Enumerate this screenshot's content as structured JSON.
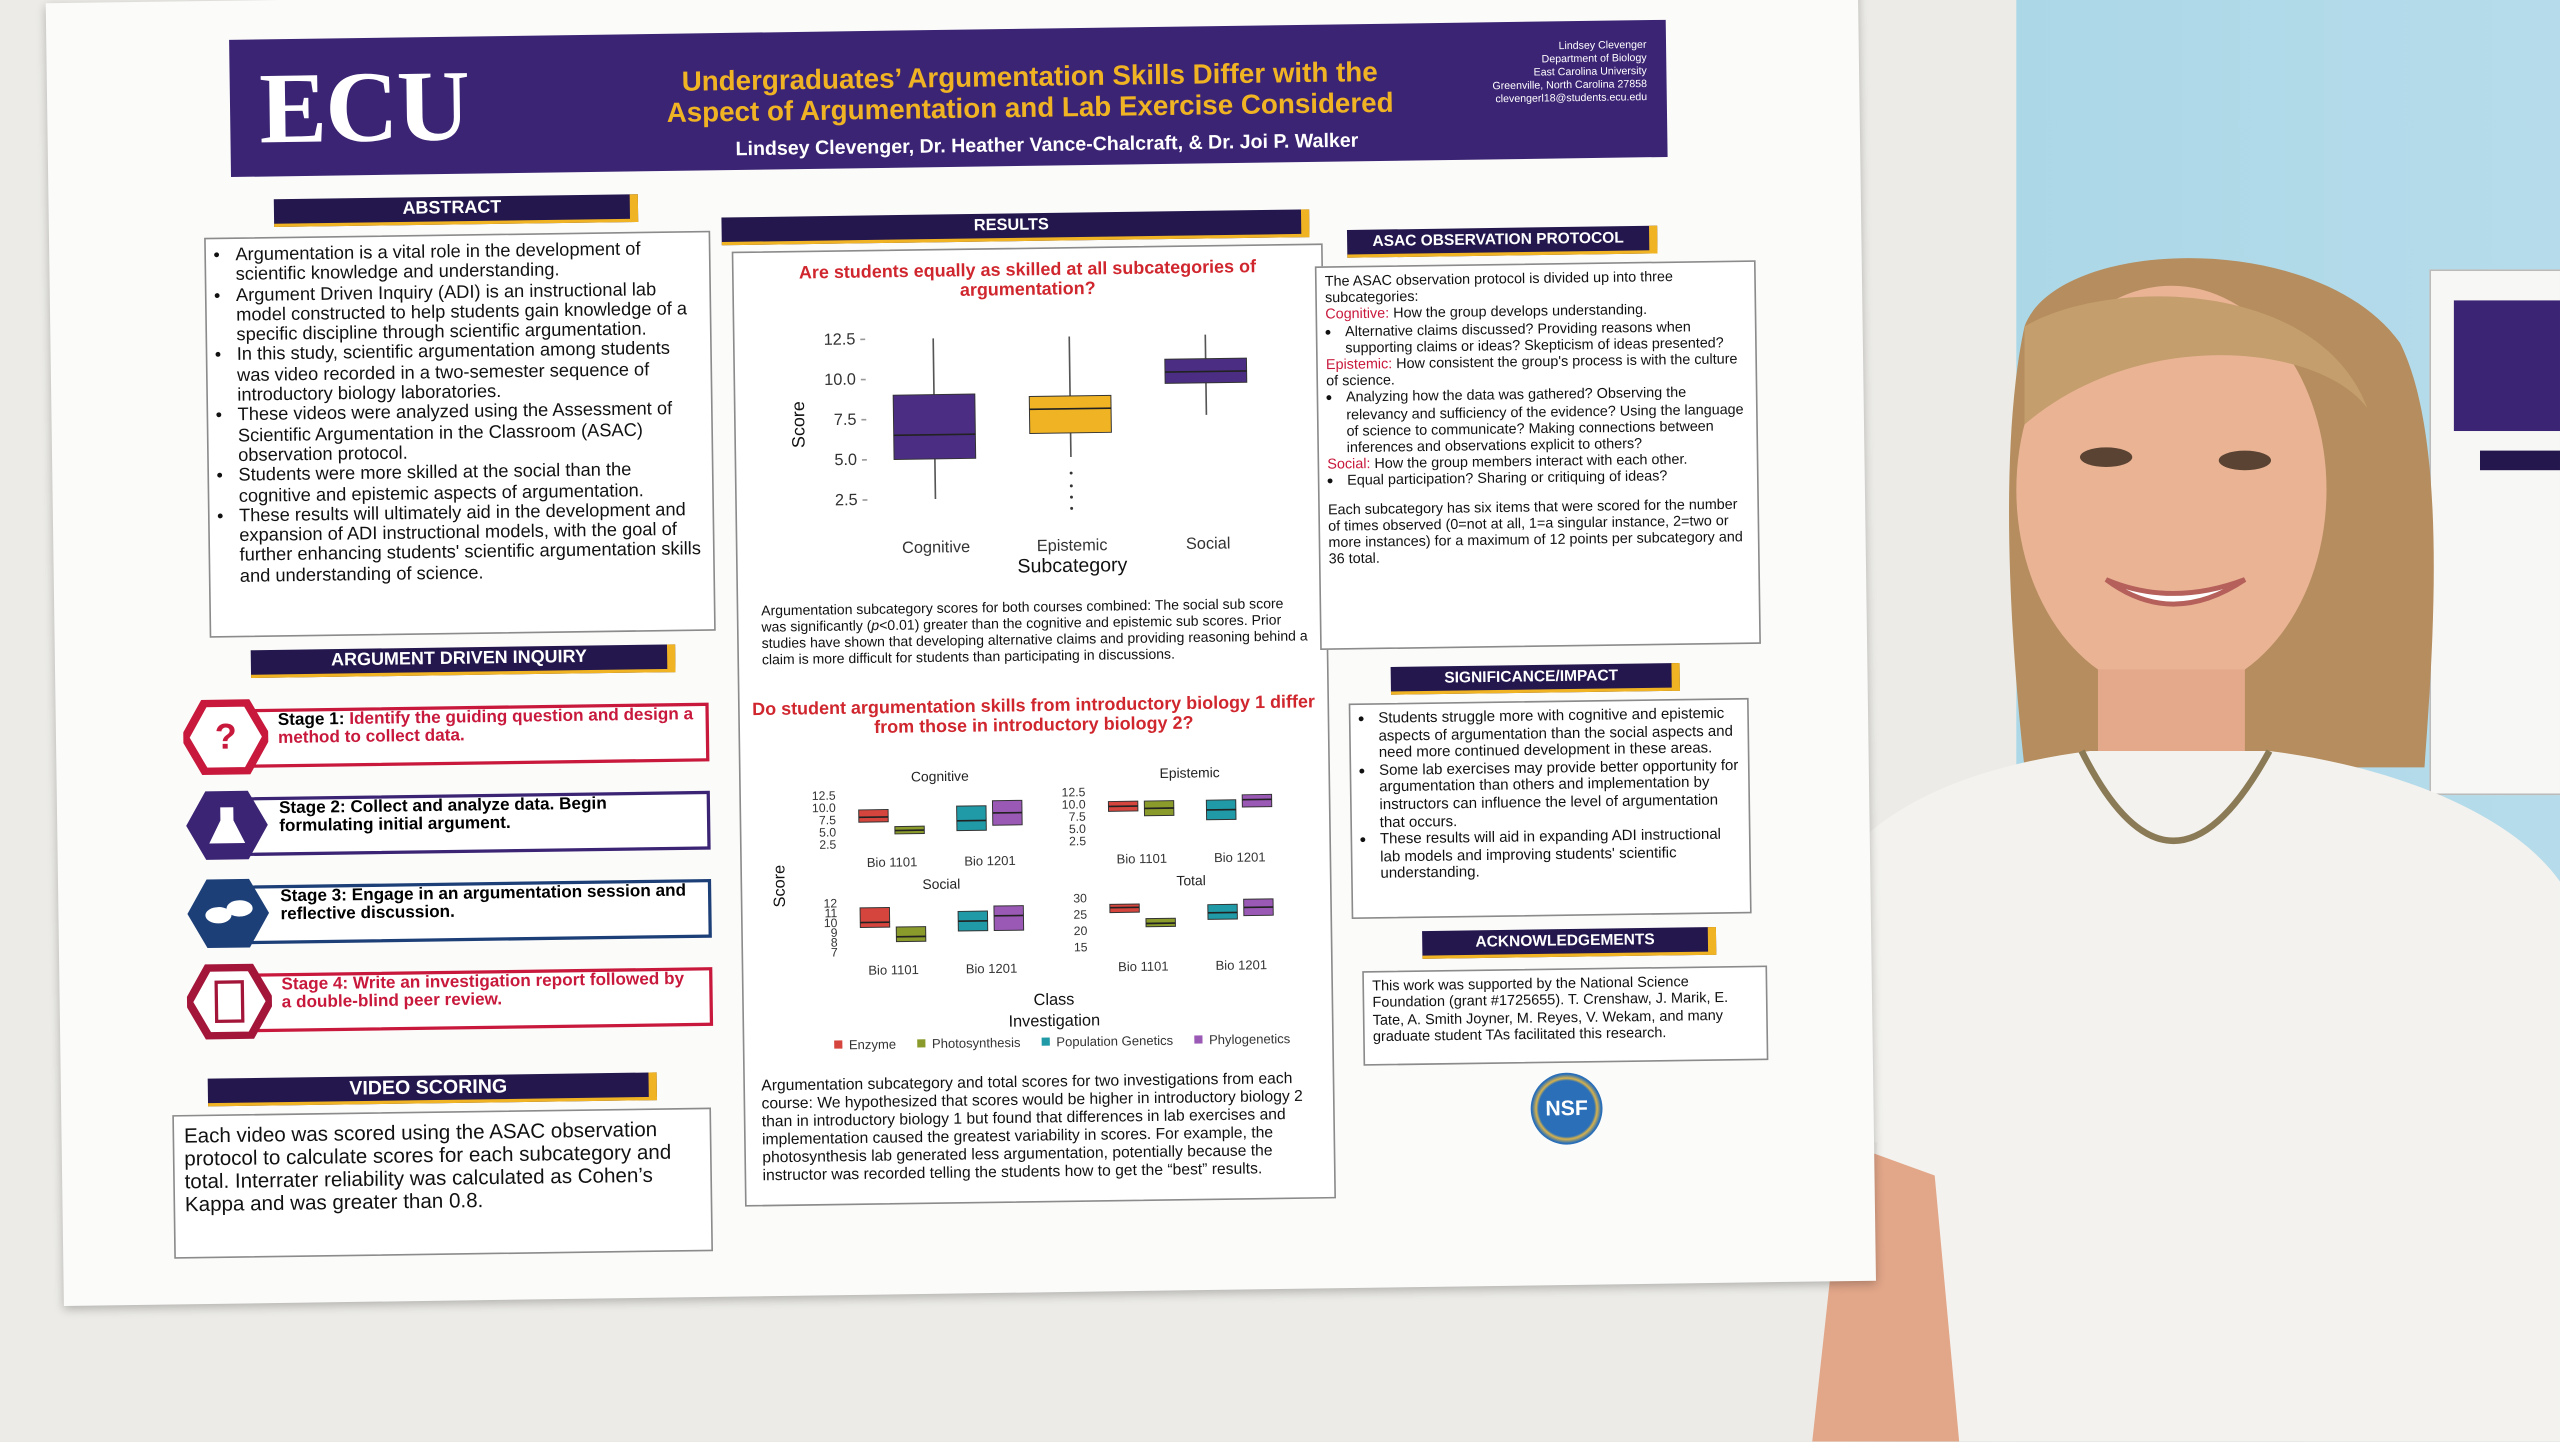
{
  "poster": {
    "logo": "ECU",
    "title_lines": [
      "Undergraduates’ Argumentation Skills Differ with the",
      "Aspect of Argumentation and Lab Exercise Considered"
    ],
    "authors": "Lindsey Clevenger, Dr. Heather Vance-Chalcraft, & Dr. Joi P. Walker",
    "contact": [
      "Lindsey Clevenger",
      "Department of Biology",
      "East Carolina University",
      "Greenville, North Carolina 27858",
      "clevengerl18@students.ecu.edu"
    ],
    "abstract": {
      "heading": "ABSTRACT",
      "items": [
        "Argumentation is a vital role in the development of scientific knowledge and understanding.",
        "Argument Driven Inquiry (ADI) is an instructional lab model constructed to help students gain knowledge of a specific discipline through scientific argumentation.",
        "In this study, scientific argumentation among students was video recorded in a two-semester sequence of introductory biology laboratories.",
        "These videos were analyzed using the Assessment of Scientific Argumentation in the Classroom (ASAC) observation protocol.",
        "Students were more skilled at the social than the cognitive and epistemic aspects of argumentation.",
        "These results will ultimately aid in the development and expansion of ADI instructional models, with the goal of further enhancing students' scientific argumentation skills and understanding of science."
      ]
    },
    "adi": {
      "heading": "ARGUMENT DRIVEN INQUIRY",
      "stages": [
        {
          "label": "Stage 1:",
          "text": "Identify the guiding question and design a method to collect data."
        },
        {
          "label": "Stage 2:",
          "text": "Collect and analyze data. Begin formulating initial argument."
        },
        {
          "label": "Stage 3:",
          "text": "Engage in an argumentation session and reflective discussion."
        },
        {
          "label": "Stage 4:",
          "text": "Write an investigation report followed by a double-blind peer review."
        }
      ]
    },
    "video_scoring": {
      "heading": "VIDEO SCORING",
      "text": "Each video was scored using the ASAC observation protocol to calculate scores for each subcategory and total. Interrater reliability was calculated as Cohen’s Kappa and was greater than 0.8."
    },
    "results": {
      "heading": "RESULTS",
      "caption1_before": "Argumentation subcategory scores for both courses combined: The social sub score was significantly (",
      "caption1_italic": "p",
      "caption1_after": "<0.01) greater than the cognitive and epistemic sub scores. Prior studies have shown that developing alternative claims and providing reasoning behind a claim is more difficult for students than participating in discussions.",
      "caption2": "Argumentation subcategory and total scores for two investigations from each course: We hypothesized that scores would be higher in introductory biology 2 than in introductory biology 1 but found that differences in lab exercises and implementation caused the greatest variability in scores. For example, the photosynthesis lab generated less argumentation, potentially because the instructor was recorded telling the students how to get the “best” results."
    },
    "asac": {
      "heading": "ASAC OBSERVATION PROTOCOL",
      "intro": "The ASAC observation protocol is divided up into three subcategories:",
      "sections": [
        {
          "label": "Cognitive:",
          "text": "How the group develops understanding.",
          "bullet": "Alternative claims discussed? Providing reasons when supporting claims or ideas? Skepticism of ideas presented?"
        },
        {
          "label": "Epistemic:",
          "text": "How consistent the group's process is with the culture of science.",
          "bullet": "Analyzing how the data was gathered? Observing the relevancy and sufficiency of the evidence? Using the language of science to communicate? Making connections between inferences and observations explicit to others?"
        },
        {
          "label": "Social:",
          "text": "How the group members interact with each other.",
          "bullet": "Equal participation? Sharing or critiquing of ideas?"
        }
      ],
      "note": "Each subcategory has six items that were scored for the number of times observed (0=not at all, 1=a singular instance, 2=two or more instances) for a maximum of 12 points per subcategory and 36 total."
    },
    "significance": {
      "heading": "SIGNIFICANCE/IMPACT",
      "items": [
        "Students struggle more with cognitive and epistemic aspects of argumentation than the social aspects and need more continued development in these areas.",
        "Some lab exercises may provide better opportunity for argumentation than others and implementation by instructors can influence the level of argumentation that occurs.",
        "These results will aid in expanding ADI instructional lab models and improving students' scientific understanding."
      ]
    },
    "acknowledgements": {
      "heading": "ACKNOWLEDGEMENTS",
      "text": "This work was supported by the National Science Foundation (grant #1725655). T. Crenshaw, J. Marik, E. Tate, A. Smith Joyner, M. Reyes, V. Wekam, and many graduate student TAs facilitated this research."
    },
    "nsf": "NSF"
  },
  "chart_data": [
    {
      "type": "box",
      "title": "Are students equally as skilled at all subcategories of argumentation?",
      "x_label": "Subcategory",
      "y_label": "Score",
      "categories": [
        "Cognitive",
        "Epistemic",
        "Social"
      ],
      "boxes": [
        {
          "min": 2.5,
          "q1": 5.0,
          "median": 6.5,
          "q3": 9.0,
          "max": 12.5,
          "color": "#4b2e83"
        },
        {
          "min": 5.0,
          "q1": 6.5,
          "median": 8.0,
          "q3": 8.8,
          "max": 12.5,
          "color": "#f0b323",
          "outliers": [
            4.0,
            3.2,
            2.5,
            1.8
          ]
        },
        {
          "min": 7.5,
          "q1": 9.5,
          "median": 10.2,
          "q3": 11.0,
          "max": 12.5,
          "color": "#4b2e83"
        }
      ],
      "ylim": [
        1,
        13.5
      ],
      "yticks": [
        2.5,
        {
          "value": 5,
          "label": "5.0"
        },
        7.5,
        {
          "value": 10,
          "label": "10.0"
        },
        12.5
      ]
    },
    {
      "type": "box-grid",
      "title": "Do student argumentation skills from introductory biology 1 differ from those in introductory biology 2?",
      "x_label": "Class",
      "y_label": "Score",
      "legend_title": "Investigation",
      "categories": [
        "Bio 1101",
        "Bio 1201"
      ],
      "series": [
        {
          "name": "Enzyme",
          "color": "#d6453d"
        },
        {
          "name": "Photosynthesis",
          "color": "#8a9a2b"
        },
        {
          "name": "Population Genetics",
          "color": "#1f9aa6"
        },
        {
          "name": "Phylogenetics",
          "color": "#9b59b6"
        }
      ],
      "panels": [
        {
          "title": "Cognitive",
          "ylim": [
            1.5,
            13.5
          ],
          "yticks": [
            2.5,
            {
              "value": 5,
              "label": "5.0"
            },
            7.5,
            {
              "value": 10,
              "label": "10.0"
            },
            12.5
          ],
          "boxes": [
            [
              {
                "q1": 7.0,
                "median": 8.0,
                "q3": 9.5
              },
              null
            ],
            [
              {
                "q1": 4.5,
                "median": 5.2,
                "q3": 6.0
              },
              null
            ],
            [
              null,
              {
                "q1": 5.0,
                "median": 7.0,
                "q3": 10.0
              }
            ],
            [
              null,
              {
                "q1": 6.0,
                "median": 8.5,
                "q3": 11.0
              }
            ]
          ]
        },
        {
          "title": "Epistemic",
          "ylim": [
            1.5,
            13.5
          ],
          "yticks": [
            2.5,
            {
              "value": 5,
              "label": "5.0"
            },
            7.5,
            {
              "value": 10,
              "label": "10.0"
            },
            12.5
          ],
          "boxes": [
            [
              {
                "q1": 8.5,
                "median": 9.5,
                "q3": 10.5
              },
              null
            ],
            [
              {
                "q1": 7.5,
                "median": 9.0,
                "q3": 10.5
              },
              null
            ],
            [
              null,
              {
                "q1": 6.5,
                "median": 8.5,
                "q3": 10.5
              }
            ],
            [
              null,
              {
                "q1": 9.0,
                "median": 10.5,
                "q3": 11.5
              }
            ]
          ]
        },
        {
          "title": "Social",
          "ylim": [
            6.5,
            12.5
          ],
          "yticks": [
            7,
            8,
            9,
            10,
            11,
            12
          ],
          "boxes": [
            [
              {
                "q1": 9.5,
                "median": 10.0,
                "q3": 11.5
              },
              null
            ],
            [
              {
                "q1": 8.0,
                "median": 8.5,
                "q3": 9.5
              },
              null
            ],
            [
              null,
              {
                "q1": 9.0,
                "median": 10.0,
                "q3": 11.0
              }
            ],
            [
              null,
              {
                "q1": 9.0,
                "median": 10.5,
                "q3": 11.5
              }
            ]
          ]
        },
        {
          "title": "Total",
          "ylim": [
            13,
            31
          ],
          "yticks": [
            15,
            20,
            25,
            30
          ],
          "boxes": [
            [
              {
                "q1": 25.5,
                "median": 27.0,
                "q3": 28.0
              },
              null
            ],
            [
              {
                "q1": 21.0,
                "median": 22.0,
                "q3": 23.5
              },
              null
            ],
            [
              null,
              {
                "q1": 23.0,
                "median": 25.0,
                "q3": 27.5
              }
            ],
            [
              null,
              {
                "q1": 24.0,
                "median": 26.5,
                "q3": 29.0
              }
            ]
          ]
        }
      ]
    }
  ]
}
